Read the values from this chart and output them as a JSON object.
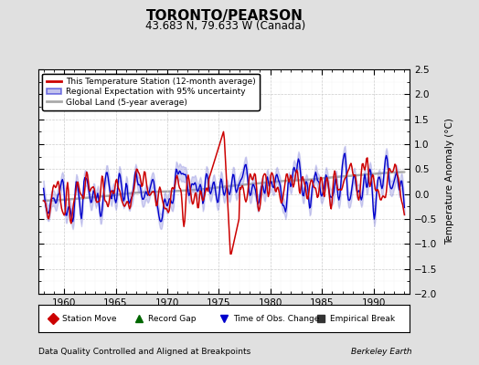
{
  "title": "TORONTO/PEARSON",
  "subtitle": "43.683 N, 79.633 W (Canada)",
  "ylabel": "Temperature Anomaly (°C)",
  "xlabel_note": "Data Quality Controlled and Aligned at Breakpoints",
  "credit": "Berkeley Earth",
  "xlim": [
    1957.5,
    1993.5
  ],
  "ylim": [
    -2.0,
    2.5
  ],
  "yticks": [
    -2,
    -1.5,
    -1,
    -0.5,
    0,
    0.5,
    1,
    1.5,
    2,
    2.5
  ],
  "xticks": [
    1960,
    1965,
    1970,
    1975,
    1980,
    1985,
    1990
  ],
  "bg_color": "#e0e0e0",
  "plot_bg_color": "#ffffff",
  "red_line_color": "#cc0000",
  "blue_line_color": "#0000cc",
  "blue_fill_color": "#8888dd",
  "gray_line_color": "#aaaaaa",
  "legend_items": [
    {
      "label": "This Temperature Station (12-month average)",
      "color": "#cc0000",
      "lw": 2
    },
    {
      "label": "Regional Expectation with 95% uncertainty",
      "color": "#0000cc",
      "lw": 2
    },
    {
      "label": "Global Land (5-year average)",
      "color": "#aaaaaa",
      "lw": 2
    }
  ],
  "marker_items": [
    {
      "label": "Station Move",
      "marker": "D",
      "color": "#cc0000"
    },
    {
      "label": "Record Gap",
      "marker": "^",
      "color": "#006600"
    },
    {
      "label": "Time of Obs. Change",
      "marker": "v",
      "color": "#0000cc"
    },
    {
      "label": "Empirical Break",
      "marker": "s",
      "color": "#333333"
    }
  ]
}
